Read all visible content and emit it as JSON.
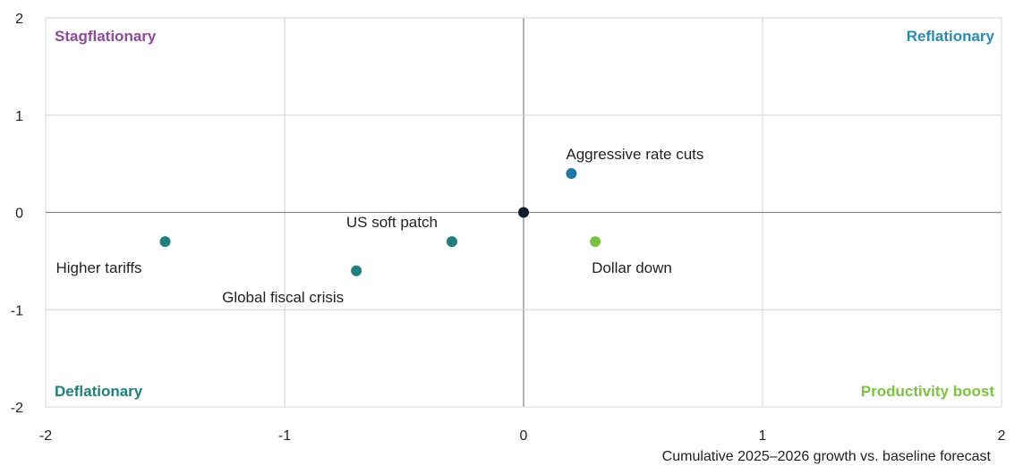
{
  "chart_data": {
    "type": "scatter",
    "xlabel": "Cumulative 2025–2026 growth vs. baseline forecast",
    "ylabel": "",
    "xlim": [
      -2,
      2
    ],
    "ylim": [
      -2,
      2
    ],
    "x_ticks": [
      "-2",
      "-1",
      "0",
      "1",
      "2"
    ],
    "y_ticks": [
      "2",
      "1",
      "0",
      "-1",
      "-2"
    ],
    "grid": true,
    "quadrant_labels": [
      {
        "id": "stagflationary",
        "text": "Stagflationary",
        "color": "#8b4a9c",
        "corner": "top-left"
      },
      {
        "id": "reflationary",
        "text": "Reflationary",
        "color": "#2b8ab5",
        "corner": "top-right"
      },
      {
        "id": "deflationary",
        "text": "Deflationary",
        "color": "#1f7f7a",
        "corner": "bottom-left"
      },
      {
        "id": "productivity",
        "text": "Productivity boost",
        "color": "#7cc242",
        "corner": "bottom-right"
      }
    ],
    "points": [
      {
        "id": "origin",
        "label": "",
        "x": 0,
        "y": 0,
        "color": "#0f1e2e",
        "label_pos": "none"
      },
      {
        "id": "aggressive-rate-cuts",
        "label": "Aggressive rate cuts",
        "x": 0.2,
        "y": 0.4,
        "color": "#1f77a8",
        "label_pos": "above"
      },
      {
        "id": "dollar-down",
        "label": "Dollar down",
        "x": 0.3,
        "y": -0.3,
        "color": "#7cc242",
        "label_pos": "below"
      },
      {
        "id": "us-soft-patch",
        "label": "US soft patch",
        "x": -0.3,
        "y": -0.3,
        "color": "#1f7f7a",
        "label_pos": "above-left"
      },
      {
        "id": "global-fiscal-crisis",
        "label": "Global fiscal crisis",
        "x": -0.7,
        "y": -0.6,
        "color": "#1f7f7a",
        "label_pos": "below-left"
      },
      {
        "id": "higher-tariffs",
        "label": "Higher tariffs",
        "x": -1.5,
        "y": -0.3,
        "color": "#1f7f7a",
        "label_pos": "below-left"
      }
    ],
    "colors": {
      "grid": "#d4d4d4",
      "zero_line": "#8a8a8a",
      "text": "#222222"
    }
  }
}
